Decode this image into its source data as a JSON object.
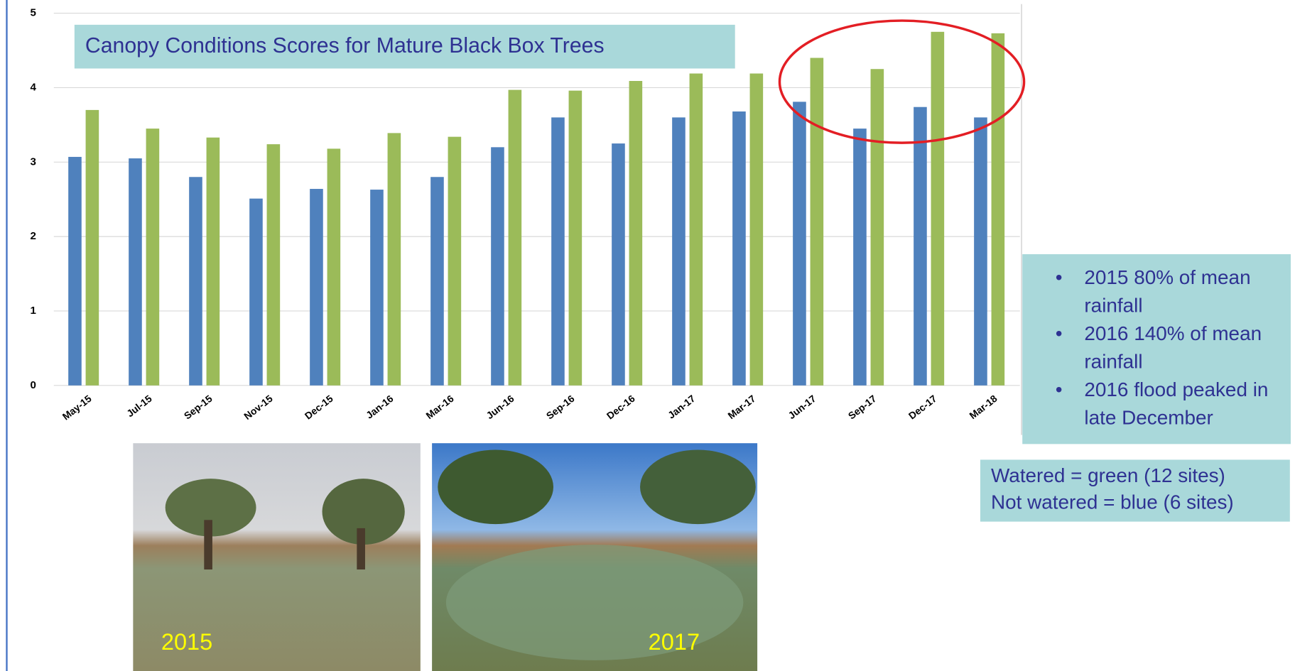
{
  "chart_data": {
    "type": "bar",
    "title": "Canopy Conditions Scores for Mature Black Box Trees",
    "categories": [
      "May-15",
      "Jul-15",
      "Sep-15",
      "Nov-15",
      "Dec-15",
      "Jan-16",
      "Mar-16",
      "Jun-16",
      "Sep-16",
      "Dec-16",
      "Jan-17",
      "Mar-17",
      "Jun-17",
      "Sep-17",
      "Dec-17",
      "Mar-18"
    ],
    "series": [
      {
        "color": "#4f81bd",
        "values": [
          3.07,
          3.05,
          2.8,
          2.51,
          2.64,
          2.63,
          2.8,
          3.2,
          3.6,
          3.25,
          3.6,
          3.68,
          3.81,
          3.45,
          3.74,
          3.6
        ]
      },
      {
        "color": "#9bbb59",
        "values": [
          3.7,
          3.45,
          3.33,
          3.24,
          3.18,
          3.39,
          3.34,
          3.97,
          3.96,
          4.09,
          4.19,
          4.19,
          4.4,
          4.25,
          4.75,
          4.73
        ]
      }
    ],
    "ylim": [
      0,
      5
    ],
    "yticks": [
      0,
      1,
      2,
      3,
      4,
      5
    ],
    "grid": true,
    "notes": [
      "2015 80% of mean rainfall",
      "2016 140% of mean rainfall",
      "2016 flood peaked in late December"
    ],
    "legend_text": [
      "Watered = green (12 sites)",
      "Not watered = blue (6 sites)"
    ],
    "photos": [
      "2015",
      "2017"
    ]
  }
}
